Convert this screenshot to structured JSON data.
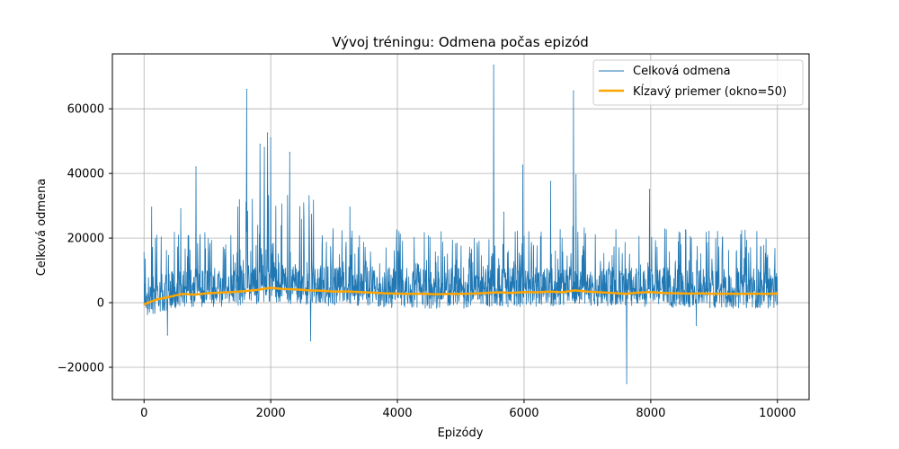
{
  "chart_data": {
    "type": "line",
    "title": "Vývoj tréningu: Odmena počas epizód",
    "xlabel": "Epizódy",
    "ylabel": "Celková odmena",
    "xlim": [
      -500,
      10500
    ],
    "ylim": [
      -30000,
      77000
    ],
    "xticks": [
      0,
      2000,
      4000,
      6000,
      8000,
      10000
    ],
    "xtick_labels": [
      "0",
      "2000",
      "4000",
      "6000",
      "8000",
      "10000"
    ],
    "yticks": [
      -20000,
      0,
      20000,
      40000,
      60000
    ],
    "ytick_labels": [
      "−20000",
      "0",
      "20000",
      "40000",
      "60000"
    ],
    "grid": true,
    "legend_position": "top-right",
    "series": [
      {
        "name": "Celková odmena",
        "color": "#1f77b4",
        "description": "noisy per-episode reward, 10000 episodes, mostly between -3000 and 15000 with sparse spikes",
        "peaks": [
          {
            "x": 120,
            "y": 29500
          },
          {
            "x": 370,
            "y": -10000
          },
          {
            "x": 580,
            "y": 29000
          },
          {
            "x": 820,
            "y": 42000
          },
          {
            "x": 1480,
            "y": 29500
          },
          {
            "x": 1620,
            "y": 66000
          },
          {
            "x": 1830,
            "y": 49000
          },
          {
            "x": 1900,
            "y": 48000
          },
          {
            "x": 1950,
            "y": 52500
          },
          {
            "x": 2000,
            "y": 51000
          },
          {
            "x": 2300,
            "y": 46500
          },
          {
            "x": 2630,
            "y": -11800
          },
          {
            "x": 3250,
            "y": 29500
          },
          {
            "x": 5520,
            "y": 73500
          },
          {
            "x": 5680,
            "y": 28000
          },
          {
            "x": 5980,
            "y": 42500
          },
          {
            "x": 6420,
            "y": 37500
          },
          {
            "x": 6780,
            "y": 65500
          },
          {
            "x": 6820,
            "y": 39500
          },
          {
            "x": 7620,
            "y": -25000
          },
          {
            "x": 7980,
            "y": 35000
          },
          {
            "x": 8720,
            "y": -7000
          },
          {
            "x": 8920,
            "y": 22000
          },
          {
            "x": 9420,
            "y": 21000
          }
        ]
      },
      {
        "name": "Kĺzavý priemer (okno=50)",
        "color": "#ffa500",
        "x": [
          0,
          200,
          400,
          600,
          800,
          1000,
          1200,
          1400,
          1600,
          1800,
          2000,
          2200,
          2400,
          2600,
          2800,
          3000,
          3200,
          3400,
          3600,
          3800,
          4000,
          4200,
          4400,
          4600,
          4800,
          5000,
          5200,
          5400,
          5600,
          5800,
          6000,
          6200,
          6400,
          6600,
          6800,
          7000,
          7200,
          7400,
          7600,
          7800,
          8000,
          8200,
          8400,
          8600,
          8800,
          9000,
          9200,
          9400,
          9600,
          9800,
          10000
        ],
        "values": [
          -500,
          1000,
          1800,
          2700,
          2500,
          2900,
          3100,
          3300,
          3600,
          4000,
          4600,
          4200,
          4100,
          3800,
          3700,
          3400,
          3500,
          3300,
          3100,
          2900,
          2800,
          2700,
          2800,
          2600,
          2700,
          2700,
          2800,
          3000,
          3200,
          3000,
          3300,
          3200,
          3400,
          3200,
          3800,
          3400,
          3200,
          3000,
          2700,
          3100,
          3300,
          3000,
          2900,
          2800,
          2900,
          2700,
          2800,
          2700,
          2800,
          2700,
          2800
        ]
      }
    ]
  }
}
